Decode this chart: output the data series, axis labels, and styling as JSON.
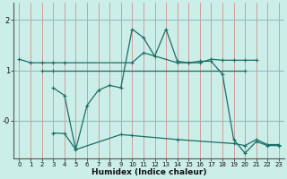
{
  "bg_color": "#cceee8",
  "line_color": "#1a6e66",
  "grid_color_v": "#d09090",
  "grid_color_h": "#90c0bc",
  "xlabel": "Humidex (Indice chaleur)",
  "xlim": [
    -0.5,
    23.5
  ],
  "ylim": [
    -0.75,
    2.35
  ],
  "yticks": [
    0,
    1,
    2
  ],
  "ytick_labels": [
    "-0",
    "1",
    "2"
  ],
  "xticks": [
    0,
    1,
    2,
    3,
    4,
    5,
    6,
    7,
    8,
    9,
    10,
    11,
    12,
    13,
    14,
    15,
    16,
    17,
    18,
    19,
    20,
    21,
    22,
    23
  ],
  "series": [
    {
      "x": [
        0,
        1,
        2,
        3,
        4,
        10,
        11,
        14,
        15,
        16,
        17,
        18,
        19,
        20,
        21
      ],
      "y": [
        1.22,
        1.15,
        1.15,
        1.15,
        1.15,
        1.15,
        1.35,
        1.15,
        1.15,
        1.15,
        1.22,
        1.2,
        1.2,
        1.2,
        1.2
      ]
    },
    {
      "x": [
        2,
        3,
        20
      ],
      "y": [
        1.0,
        1.0,
        1.0
      ]
    },
    {
      "x": [
        3,
        4,
        5,
        6,
        7,
        8,
        9,
        10,
        11,
        12,
        13,
        14,
        15,
        16,
        17,
        18,
        19,
        20,
        21,
        22,
        23
      ],
      "y": [
        0.65,
        0.5,
        -0.58,
        0.3,
        0.6,
        0.7,
        0.65,
        1.82,
        1.65,
        1.28,
        1.82,
        1.18,
        1.15,
        1.18,
        1.18,
        0.92,
        -0.38,
        -0.65,
        -0.42,
        -0.5,
        -0.5
      ]
    },
    {
      "x": [
        3,
        4,
        5,
        9,
        10,
        14,
        19,
        20,
        21,
        22,
        23
      ],
      "y": [
        -0.25,
        -0.26,
        -0.58,
        -0.28,
        -0.3,
        -0.38,
        -0.46,
        -0.5,
        -0.38,
        -0.48,
        -0.48
      ]
    }
  ]
}
